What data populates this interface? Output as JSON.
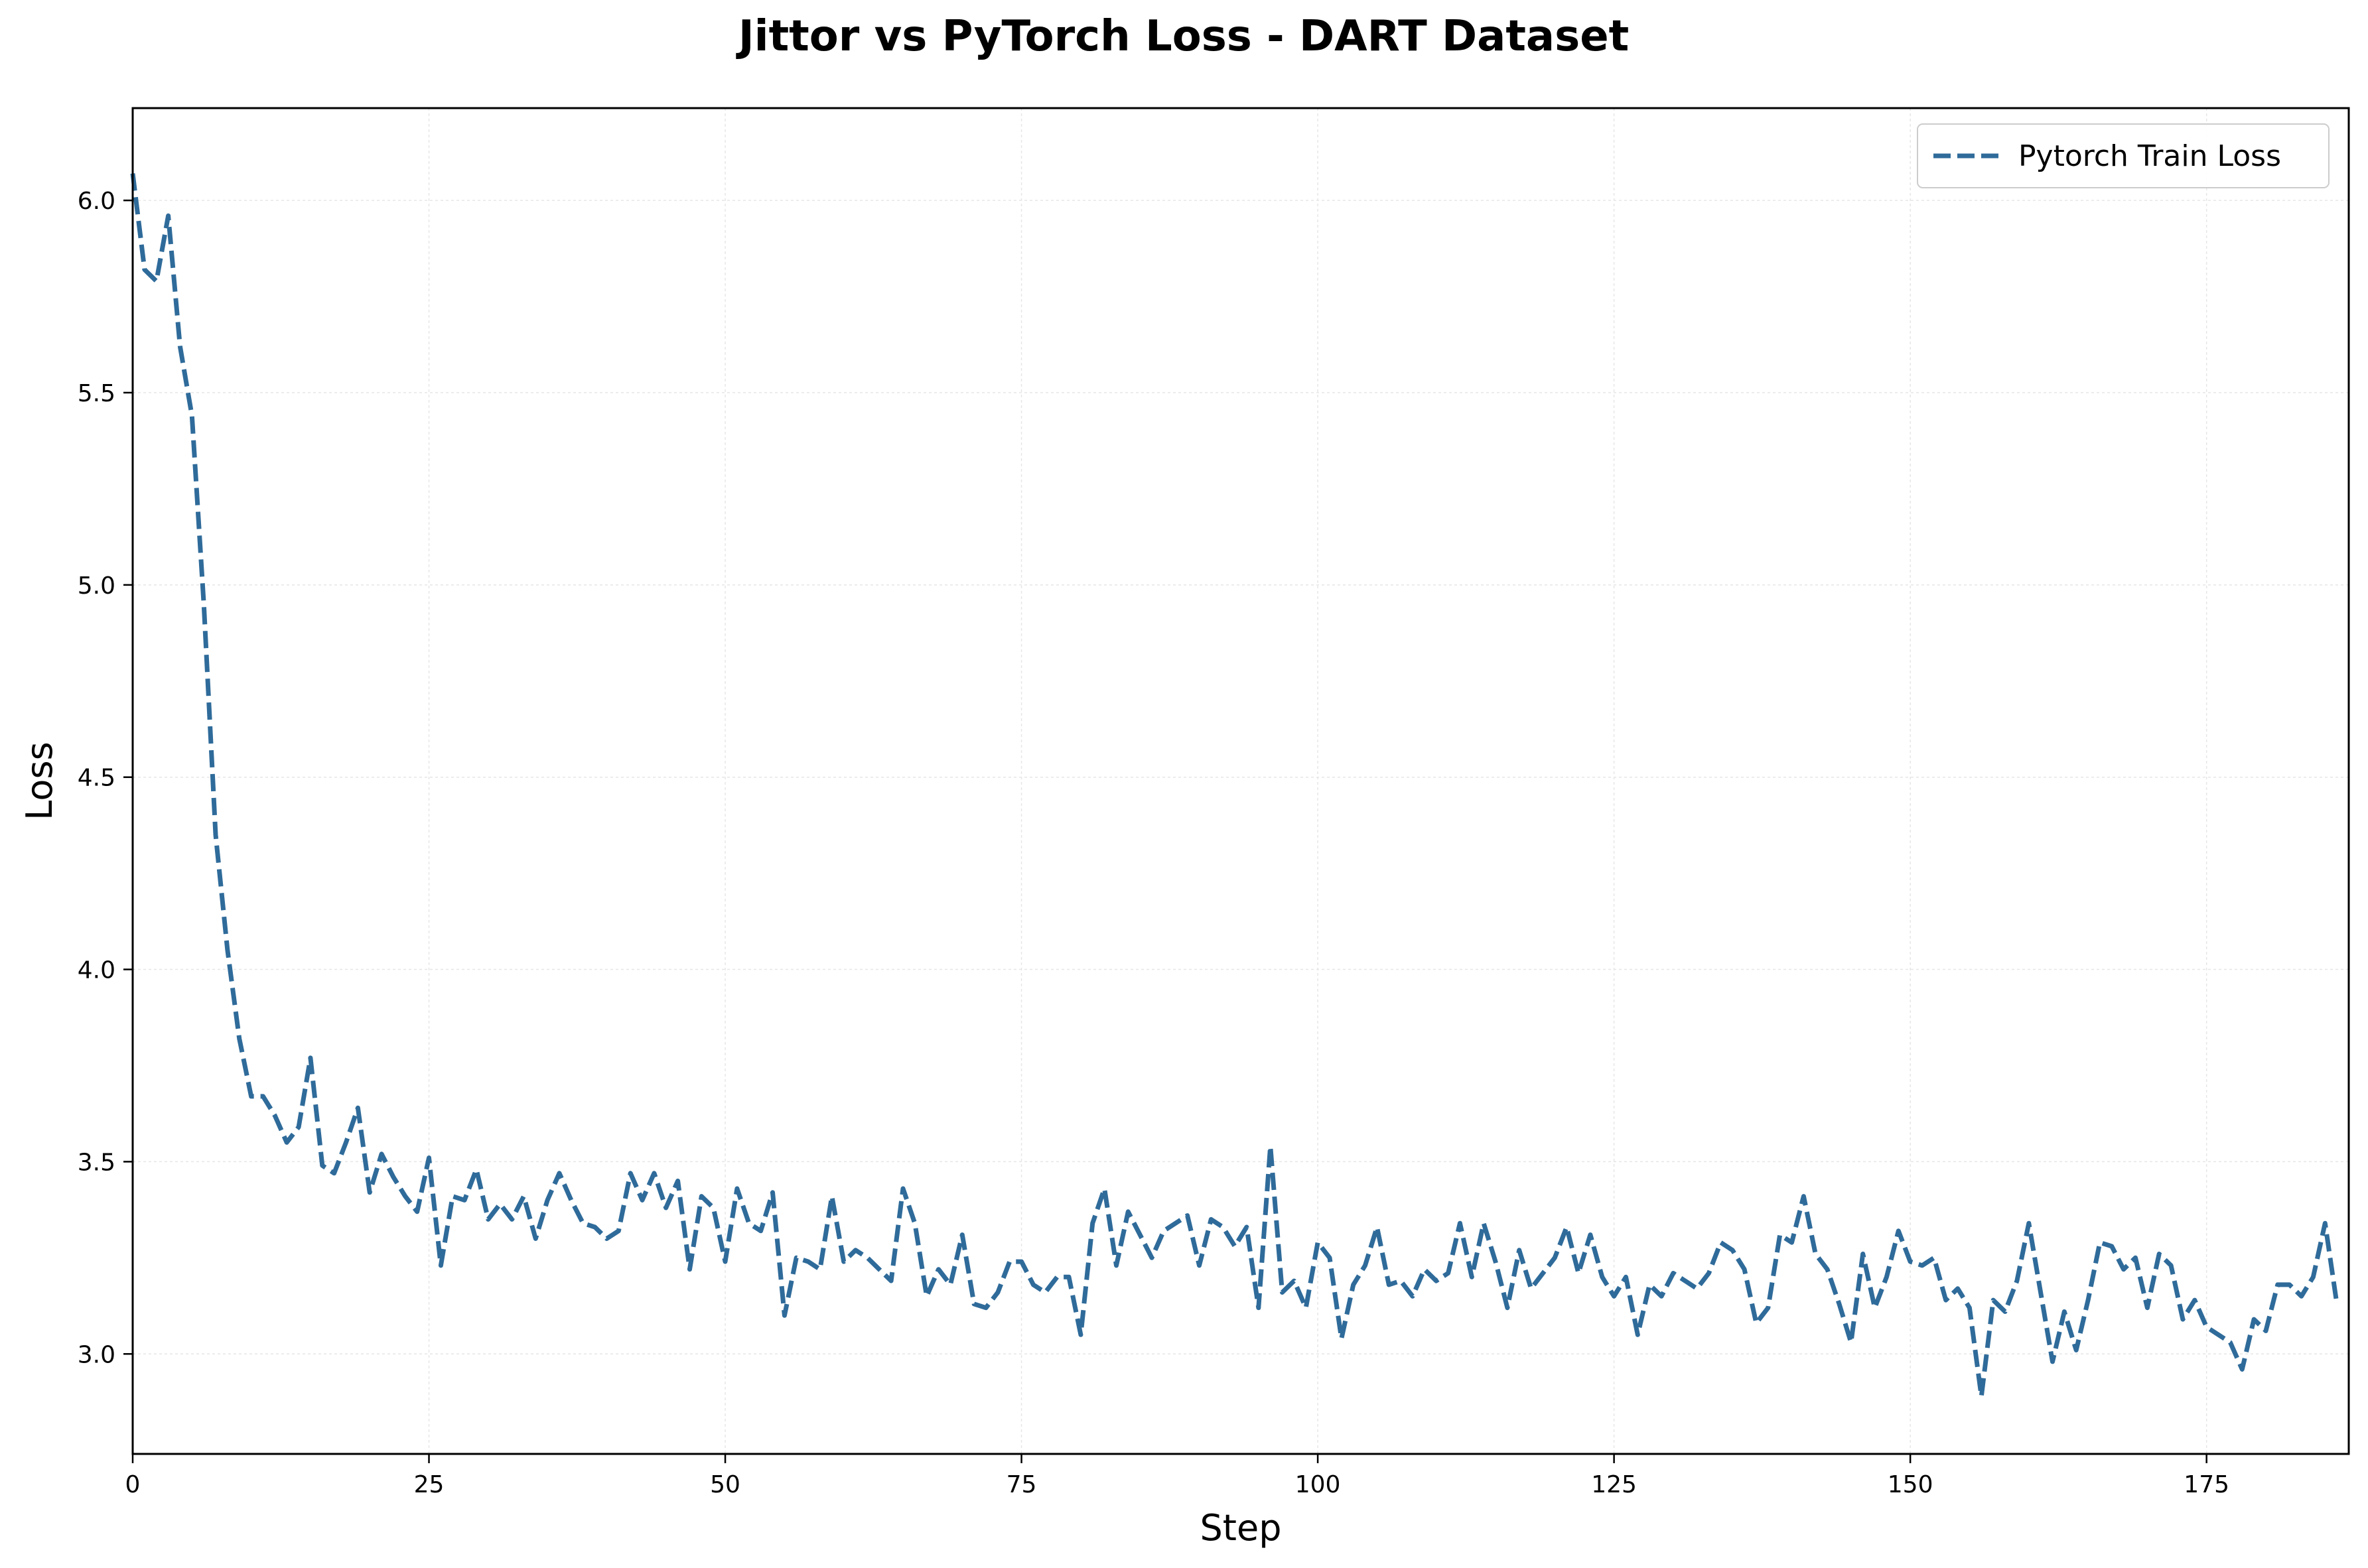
{
  "chart_data": {
    "type": "line",
    "title": "Jittor vs PyTorch Loss - DART Dataset",
    "xlabel": "Step",
    "ylabel": "Loss",
    "xlim": [
      0,
      187
    ],
    "ylim": [
      2.74,
      6.24
    ],
    "xticks": [
      0,
      25,
      50,
      75,
      100,
      125,
      150,
      175
    ],
    "yticks": [
      3.0,
      3.5,
      4.0,
      4.5,
      5.0,
      5.5,
      6.0
    ],
    "ytick_labels": [
      "3.0",
      "3.5",
      "4.0",
      "4.5",
      "5.0",
      "5.5",
      "6.0"
    ],
    "grid": true,
    "legend_position": "top-right",
    "series": [
      {
        "name": "Pytorch Train Loss",
        "color": "#2f6b9a",
        "line_style": "dashed",
        "x": [
          0,
          1,
          2,
          3,
          4,
          5,
          6,
          7,
          8,
          9,
          10,
          11,
          12,
          13,
          14,
          15,
          16,
          17,
          18,
          19,
          20,
          21,
          22,
          23,
          24,
          25,
          26,
          27,
          28,
          29,
          30,
          31,
          32,
          33,
          34,
          35,
          36,
          37,
          38,
          39,
          40,
          41,
          42,
          43,
          44,
          45,
          46,
          47,
          48,
          49,
          50,
          51,
          52,
          53,
          54,
          55,
          56,
          57,
          58,
          59,
          60,
          61,
          62,
          63,
          64,
          65,
          66,
          67,
          68,
          69,
          70,
          71,
          72,
          73,
          74,
          75,
          76,
          77,
          78,
          79,
          80,
          81,
          82,
          83,
          84,
          85,
          86,
          87,
          88,
          89,
          90,
          91,
          92,
          93,
          94,
          95,
          96,
          97,
          98,
          99,
          100,
          101,
          102,
          103,
          104,
          105,
          106,
          107,
          108,
          109,
          110,
          111,
          112,
          113,
          114,
          115,
          116,
          117,
          118,
          119,
          120,
          121,
          122,
          123,
          124,
          125,
          126,
          127,
          128,
          129,
          130,
          131,
          132,
          133,
          134,
          135,
          136,
          137,
          138,
          139,
          140,
          141,
          142,
          143,
          144,
          145,
          146,
          147,
          148,
          149,
          150,
          151,
          152,
          153,
          154,
          155,
          156,
          157,
          158,
          159,
          160,
          161,
          162,
          163,
          164,
          165,
          166,
          167,
          168,
          169,
          170,
          171,
          172,
          173,
          174,
          175,
          176,
          177,
          178,
          179,
          180,
          181,
          182,
          183,
          184,
          185,
          186
        ],
        "y": [
          6.07,
          5.82,
          5.79,
          5.96,
          5.62,
          5.44,
          4.95,
          4.35,
          4.05,
          3.82,
          3.67,
          3.67,
          3.62,
          3.55,
          3.59,
          3.77,
          3.49,
          3.47,
          3.55,
          3.64,
          3.42,
          3.52,
          3.46,
          3.41,
          3.37,
          3.51,
          3.23,
          3.41,
          3.4,
          3.48,
          3.35,
          3.39,
          3.35,
          3.41,
          3.3,
          3.4,
          3.47,
          3.4,
          3.34,
          3.33,
          3.3,
          3.32,
          3.47,
          3.4,
          3.47,
          3.38,
          3.45,
          3.22,
          3.41,
          3.38,
          3.24,
          3.43,
          3.34,
          3.32,
          3.42,
          3.1,
          3.25,
          3.24,
          3.22,
          3.41,
          3.24,
          3.27,
          3.25,
          3.22,
          3.19,
          3.43,
          3.34,
          3.15,
          3.22,
          3.18,
          3.31,
          3.13,
          3.12,
          3.16,
          3.24,
          3.24,
          3.18,
          3.16,
          3.2,
          3.2,
          3.05,
          3.34,
          3.43,
          3.23,
          3.37,
          3.31,
          3.25,
          3.32,
          3.34,
          3.36,
          3.23,
          3.35,
          3.33,
          3.28,
          3.33,
          3.12,
          3.54,
          3.16,
          3.19,
          3.12,
          3.29,
          3.25,
          3.04,
          3.18,
          3.23,
          3.33,
          3.18,
          3.19,
          3.15,
          3.22,
          3.19,
          3.21,
          3.34,
          3.2,
          3.34,
          3.24,
          3.12,
          3.27,
          3.17,
          3.21,
          3.25,
          3.33,
          3.21,
          3.31,
          3.2,
          3.15,
          3.2,
          3.05,
          3.18,
          3.15,
          3.21,
          3.19,
          3.17,
          3.21,
          3.29,
          3.27,
          3.22,
          3.08,
          3.12,
          3.31,
          3.29,
          3.41,
          3.26,
          3.22,
          3.13,
          3.03,
          3.26,
          3.12,
          3.2,
          3.32,
          3.24,
          3.23,
          3.25,
          3.14,
          3.17,
          3.12,
          2.89,
          3.14,
          3.11,
          3.19,
          3.34,
          3.16,
          2.98,
          3.11,
          3.01,
          3.14,
          3.29,
          3.28,
          3.22,
          3.25,
          3.12,
          3.26,
          3.23,
          3.09,
          3.14,
          3.07,
          3.05,
          3.03,
          2.96,
          3.09,
          3.06,
          3.18,
          3.18,
          3.15,
          3.2,
          3.34,
          3.13
        ]
      }
    ]
  }
}
